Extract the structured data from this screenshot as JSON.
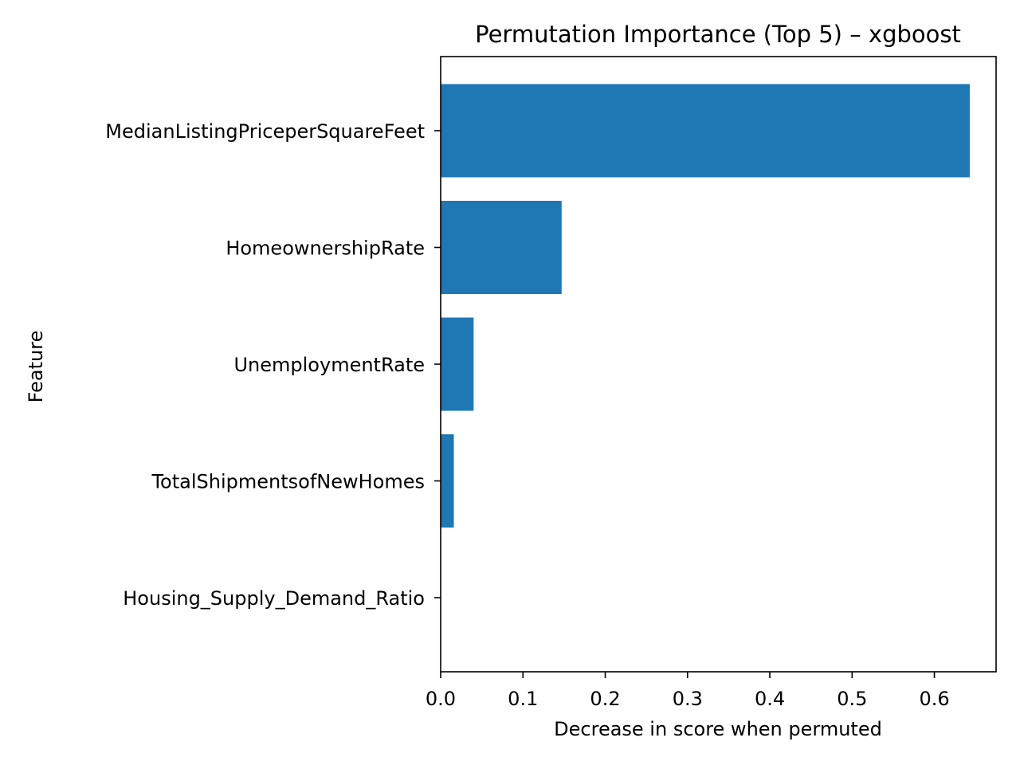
{
  "chart_data": {
    "type": "bar",
    "orientation": "horizontal",
    "title": "Permutation Importance (Top 5) – xgboost",
    "xlabel": "Decrease in score when permuted",
    "ylabel": "Feature",
    "categories": [
      "MedianListingPriceperSquareFeet",
      "HomeownershipRate",
      "UnemploymentRate",
      "TotalShipmentsofNewHomes",
      "Housing_Supply_Demand_Ratio"
    ],
    "values": [
      0.643,
      0.147,
      0.04,
      0.016,
      0.0
    ],
    "xlim": [
      0.0,
      0.675
    ],
    "xticks": [
      "0.0",
      "0.1",
      "0.2",
      "0.3",
      "0.4",
      "0.5",
      "0.6"
    ],
    "bar_color": "#1f77b4",
    "grid": false,
    "legend": "none"
  }
}
